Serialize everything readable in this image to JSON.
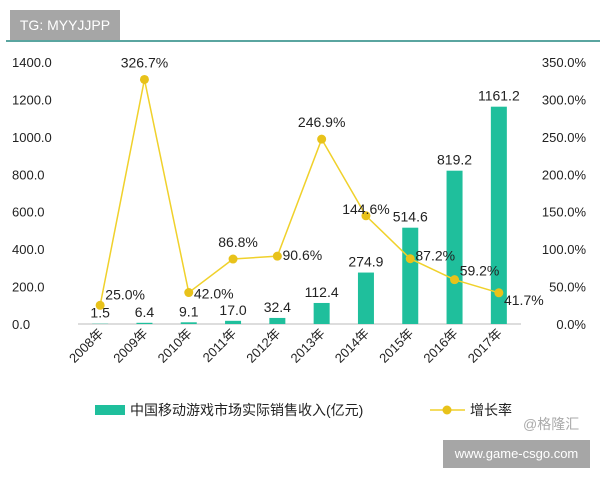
{
  "header": {
    "tag": "TG: MYYJJPP"
  },
  "watermark": {
    "text": "@格隆汇",
    "site": "www.game-csgo.com"
  },
  "colors": {
    "bar": "#1fbf9c",
    "line": "#f0d12b"
  },
  "chart_data": {
    "type": "bar+line",
    "categories": [
      "2008年",
      "2009年",
      "2010年",
      "2011年",
      "2012年",
      "2013年",
      "2014年",
      "2015年",
      "2016年",
      "2017年"
    ],
    "series": [
      {
        "name": "中国移动游戏市场实际销售收入(亿元)",
        "type": "bar",
        "axis": "left",
        "values": [
          1.5,
          6.4,
          9.1,
          17.0,
          32.4,
          112.4,
          274.9,
          514.6,
          819.2,
          1161.2
        ],
        "labels": [
          "1.5",
          "6.4",
          "9.1",
          "17.0",
          "32.4",
          "112.4",
          "274.9",
          "514.6",
          "819.2",
          "1161.2"
        ]
      },
      {
        "name": "增长率",
        "type": "line",
        "axis": "right",
        "values": [
          25.0,
          326.7,
          42.0,
          86.8,
          90.6,
          246.9,
          144.6,
          87.2,
          59.2,
          41.7
        ],
        "labels": [
          "25.0%",
          "326.7%",
          "42.0%",
          "86.8%",
          "90.6%",
          "246.9%",
          "144.6%",
          "87.2%",
          "59.2%",
          "41.7%"
        ]
      }
    ],
    "yleft": {
      "range": [
        0,
        1400
      ],
      "ticks": [
        "0.0",
        "200.0",
        "400.0",
        "600.0",
        "800.0",
        "1000.0",
        "1200.0",
        "1400.0"
      ]
    },
    "yright": {
      "range": [
        0,
        350
      ],
      "ticks": [
        "0.0%",
        "50.0%",
        "100.0%",
        "150.0%",
        "200.0%",
        "250.0%",
        "300.0%",
        "350.0%"
      ]
    },
    "grid": false,
    "legend": "bottom"
  }
}
